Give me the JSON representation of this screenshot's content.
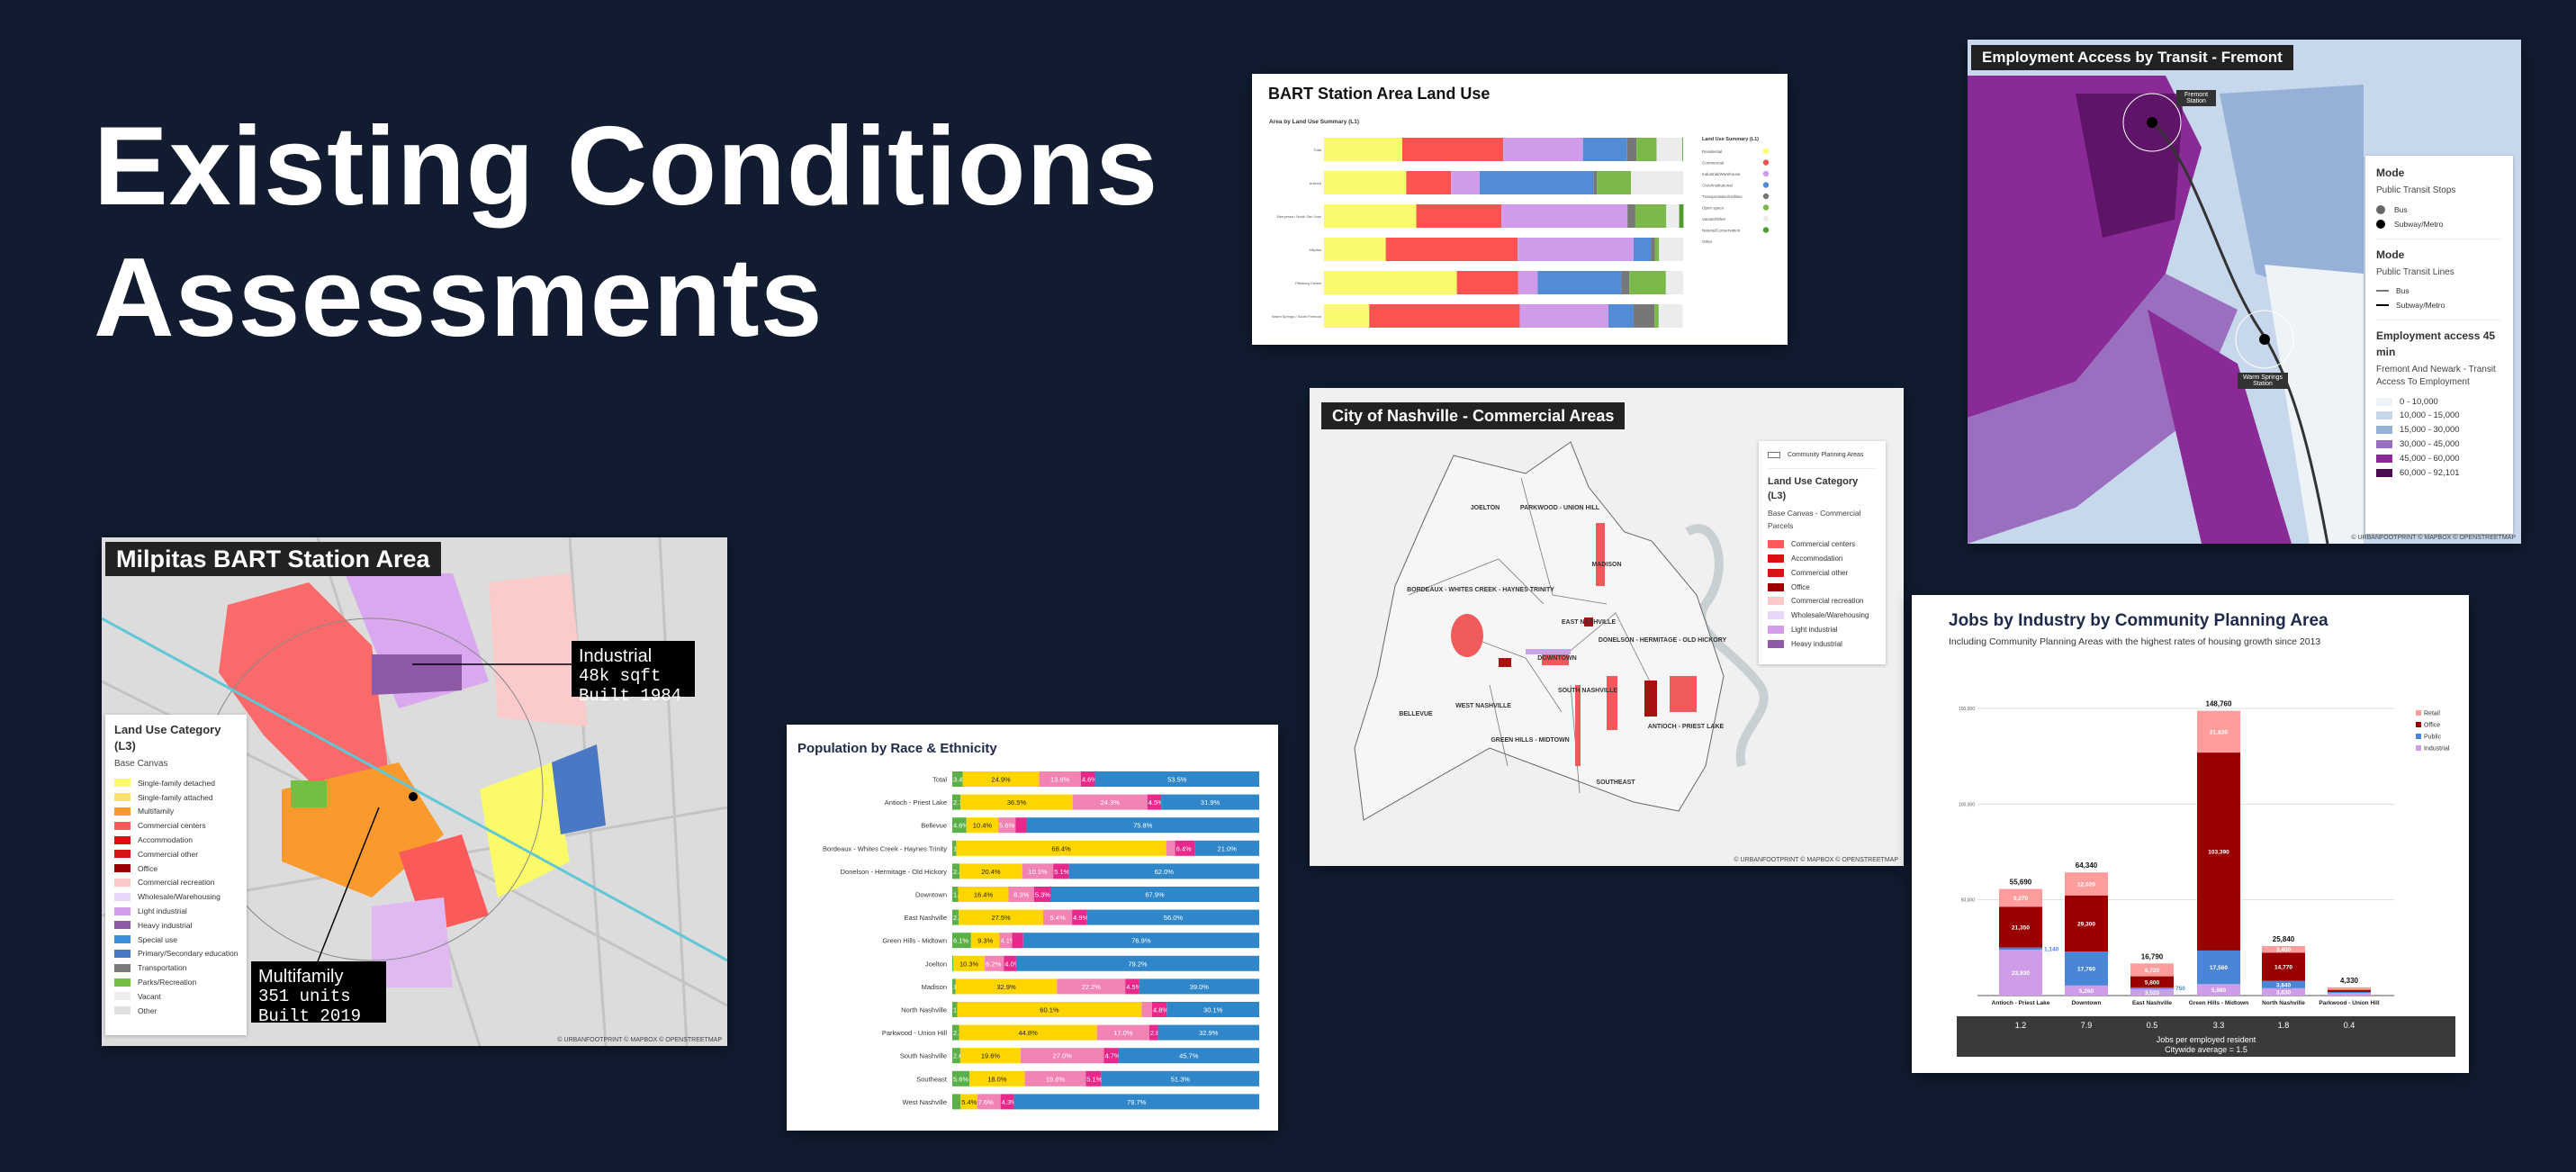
{
  "hero": {
    "line1": "Existing Conditions",
    "line2": "Assessments"
  },
  "colors": {
    "background": "#111c31"
  },
  "attribution": "© URBANFOOTPRINT © MAPBOX © OPENSTREETMAP",
  "milpitas": {
    "title": "Milpitas BART Station Area",
    "legend": {
      "title": "Land Use Category (L3)",
      "subtitle": "Base Canvas",
      "items": [
        {
          "label": "Single-family detached",
          "color": "#fbfb6a"
        },
        {
          "label": "Single-family attached",
          "color": "#fde16a"
        },
        {
          "label": "Multifamily",
          "color": "#fb9a2c"
        },
        {
          "label": "Commercial centers",
          "color": "#fb5a5a"
        },
        {
          "label": "Accommodation",
          "color": "#dd1010"
        },
        {
          "label": "Commercial other",
          "color": "#d41515"
        },
        {
          "label": "Office",
          "color": "#990000"
        },
        {
          "label": "Commercial recreation",
          "color": "#fbc8c8"
        },
        {
          "label": "Wholesale/Warehousing",
          "color": "#e9d5f7"
        },
        {
          "label": "Light industrial",
          "color": "#d49be8"
        },
        {
          "label": "Heavy industrial",
          "color": "#8e5aa8"
        },
        {
          "label": "Special use",
          "color": "#3b8fde"
        },
        {
          "label": "Primary/Secondary education",
          "color": "#4b78c4"
        },
        {
          "label": "Transportation",
          "color": "#7a7a7a"
        },
        {
          "label": "Parks/Recreation",
          "color": "#72bf44"
        },
        {
          "label": "Vacant",
          "color": "#eeeeee"
        },
        {
          "label": "Other",
          "color": "#e0e0e0"
        }
      ]
    },
    "callouts": [
      {
        "heading": "Industrial",
        "line1": "48k sqft",
        "line2": "Built 1984"
      },
      {
        "heading": "Multifamily",
        "line1": "351 units",
        "line2": "Built 2019"
      }
    ]
  },
  "population": {
    "chart_data": {
      "type": "bar",
      "orientation": "horizontal-stacked-100",
      "title": "Population by Race & Ethnicity",
      "colors": [
        "#5aaf48",
        "#ffd500",
        "#f283b5",
        "#e8288a",
        "#2f86c9"
      ],
      "categories": [
        "Total",
        "Antioch - Priest Lake",
        "Bellevue",
        "Bordeaux - Whites Creek - Haynes Trinity",
        "Donelson - Hermitage - Old Hickory",
        "Downtown",
        "East Nashville",
        "Green Hills - Midtown",
        "Joelton",
        "Madison",
        "North Nashville",
        "Parkwood - Union Hill",
        "South Nashville",
        "Southeast",
        "West Nashville"
      ],
      "values": [
        [
          3.4,
          24.9,
          13.6,
          4.6,
          53.5
        ],
        [
          2.7,
          36.5,
          24.3,
          4.5,
          31.9
        ],
        [
          4.6,
          10.4,
          5.6,
          3.6,
          75.8
        ],
        [
          1.3,
          68.4,
          2.9,
          6.4,
          21.0
        ],
        [
          2.4,
          20.4,
          10.1,
          5.1,
          62.0
        ],
        [
          1.9,
          16.4,
          8.3,
          5.3,
          67.9
        ],
        [
          2.1,
          27.5,
          9.4,
          4.9,
          56.0
        ],
        [
          6.1,
          9.3,
          4.1,
          3.6,
          76.9
        ],
        [
          0.3,
          10.3,
          6.2,
          4.0,
          79.2
        ],
        [
          1.1,
          32.9,
          22.2,
          4.5,
          39.0
        ],
        [
          1.6,
          60.1,
          3.4,
          4.8,
          30.1
        ],
        [
          2.2,
          44.8,
          17.0,
          2.8,
          32.9
        ],
        [
          2.6,
          19.6,
          27.0,
          4.7,
          45.7
        ],
        [
          5.6,
          18.0,
          19.8,
          5.1,
          51.3
        ],
        [
          2.7,
          5.4,
          7.6,
          4.3,
          79.7
        ]
      ],
      "labels": [
        [
          "3.4%",
          "24.9%",
          "13.6%",
          "4.6%",
          "53.5%"
        ],
        [
          "2.7%",
          "36.5%",
          "24.3%",
          "4.5%",
          "31.9%"
        ],
        [
          "4.6%",
          "10.4%",
          "5.6%",
          "",
          "75.8%"
        ],
        [
          "1.3%",
          "68.4%",
          "",
          "6.4%",
          "21.0%"
        ],
        [
          "2.4%",
          "20.4%",
          "10.1%",
          "5.1%",
          "62.0%"
        ],
        [
          "1.9%",
          "16.4%",
          "8.3%",
          "5.3%",
          "67.9%"
        ],
        [
          "2.1%",
          "27.5%",
          "9.4%",
          "4.9%",
          "56.0%"
        ],
        [
          "6.1%",
          "9.3%",
          "4.1%",
          "",
          "76.9%"
        ],
        [
          "",
          "10.3%",
          "6.2%",
          "4.0%",
          "79.2%"
        ],
        [
          "1.1%",
          "32.9%",
          "22.2%",
          "4.5%",
          "39.0%"
        ],
        [
          "1.6%",
          "60.1%",
          "",
          "4.8%",
          "30.1%"
        ],
        [
          "2.2%",
          "44.8%",
          "17.0%",
          "2.8%",
          "32.9%"
        ],
        [
          "2.6%",
          "19.6%",
          "27.0%",
          "4.7%",
          "45.7%"
        ],
        [
          "5.6%",
          "18.0%",
          "19.8%",
          "5.1%",
          "51.3%"
        ],
        [
          "",
          "5.4%",
          "7.6%",
          "4.3%",
          "79.7%"
        ]
      ]
    }
  },
  "bart": {
    "chart_data": {
      "type": "bar",
      "orientation": "horizontal-stacked-100",
      "title": "BART Station Area Land Use",
      "subtitle": "Area by Land Use Summary (L1)",
      "legend_title": "Land Use Summary (L1)",
      "legend_position": "right",
      "categories": [
        "Total",
        "Antioch",
        "Berryessa / North San Jose",
        "Milpitas",
        "Pittsburg Center",
        "Warm Springs / South Fremont"
      ],
      "series": [
        {
          "name": "Residential",
          "color": "#fafa6e",
          "values": [
            21.8,
            22.9,
            25.7,
            17.2,
            37.0,
            12.6
          ]
        },
        {
          "name": "Commercial",
          "color": "#fb5252",
          "values": [
            28.1,
            12.5,
            23.7,
            36.7,
            17.1,
            41.9
          ]
        },
        {
          "name": "Industrial/Warehouse",
          "color": "#d09cea",
          "values": [
            22.2,
            7.9,
            35.1,
            32.3,
            5.4,
            24.7
          ]
        },
        {
          "name": "Civic/Institutional",
          "color": "#538cd6",
          "values": [
            12.3,
            31.7,
            0,
            4.8,
            23.3,
            7.0
          ]
        },
        {
          "name": "Transportation/Utilities",
          "color": "#777777",
          "values": [
            2.6,
            1.0,
            2.2,
            1.1,
            2.2,
            5.8
          ]
        },
        {
          "name": "Open space",
          "color": "#7bb84a",
          "values": [
            5.6,
            9.5,
            8.6,
            1.2,
            10.2,
            1.2
          ]
        },
        {
          "name": "Vacant/Other",
          "color": "#ececec",
          "values": [
            7.2,
            14.5,
            3.6,
            6.7,
            4.8,
            6.7
          ]
        },
        {
          "name": "Natural/Conservation",
          "color": "#4e9a2f",
          "values": [
            0.2,
            0,
            1.2,
            0,
            0,
            0
          ]
        },
        {
          "name": "Other",
          "color": "#ffffff",
          "values": [
            0,
            0,
            0,
            0,
            0,
            0
          ]
        }
      ]
    }
  },
  "nashville": {
    "title": "City of Nashville - Commercial Areas",
    "legend": {
      "boundary_label": "Community Planning Areas",
      "title": "Land Use Category (L3)",
      "subtitle": "Base Canvas - Commercial Parcels",
      "items": [
        {
          "label": "Commercial centers",
          "color": "#fb5a5a"
        },
        {
          "label": "Accommodation",
          "color": "#dd1010"
        },
        {
          "label": "Commercial other",
          "color": "#d41515"
        },
        {
          "label": "Office",
          "color": "#990000"
        },
        {
          "label": "Commercial recreation",
          "color": "#fbc8c8"
        },
        {
          "label": "Wholesale/Warehousing",
          "color": "#e9d5f7"
        },
        {
          "label": "Light industrial",
          "color": "#d49be8"
        },
        {
          "label": "Heavy industrial",
          "color": "#8e5aa8"
        }
      ]
    },
    "area_labels": [
      "JOELTON",
      "PARKWOOD - UNION HILL",
      "MADISON",
      "BORDEAUX - WHITES CREEK - HAYNES TRINITY",
      "EAST NASHVILLE",
      "DONELSON - HERMITAGE - OLD HICKORY",
      "DOWNTOWN",
      "SOUTH NASHVILLE",
      "WEST NASHVILLE",
      "BELLEVUE",
      "GREEN HILLS - MIDTOWN",
      "ANTIOCH - PRIEST LAKE",
      "SOUTHEAST"
    ]
  },
  "fremont": {
    "title": "Employment Access by Transit - Fremont",
    "station_labels": [
      "Fremont Station",
      "Warm Springs Station"
    ],
    "legend": {
      "stops": {
        "title": "Mode",
        "subtitle": "Public Transit Stops",
        "items": [
          {
            "label": "Bus",
            "color": "#666666"
          },
          {
            "label": "Subway/Metro",
            "color": "#000000"
          }
        ]
      },
      "lines": {
        "title": "Mode",
        "subtitle": "Public Transit Lines",
        "items": [
          {
            "label": "Bus",
            "color": "#777777"
          },
          {
            "label": "Subway/Metro",
            "color": "#000000"
          }
        ]
      },
      "access": {
        "title": "Employment access 45 min",
        "subtitle": "Fremont And Newark - Transit Access To Employment",
        "items": [
          {
            "label": "0 - 10,000",
            "color": "#eef3f8"
          },
          {
            "label": "10,000 - 15,000",
            "color": "#c8d8ec"
          },
          {
            "label": "15,000 - 30,000",
            "color": "#97b0d8"
          },
          {
            "label": "30,000 - 45,000",
            "color": "#9a6fc0"
          },
          {
            "label": "45,000 - 60,000",
            "color": "#8a2a96"
          },
          {
            "label": "60,000 - 92,101",
            "color": "#4b0b52"
          }
        ]
      }
    }
  },
  "jobs": {
    "chart_data": {
      "type": "bar",
      "orientation": "vertical-stacked",
      "title": "Jobs by Industry by Community Planning Area",
      "subtitle": "Including Community Planning Areas with the highest rates of housing growth since 2013",
      "ylim": [
        0,
        150000
      ],
      "yticks": [
        "50,000",
        "100,000",
        "150,000"
      ],
      "ytick_values": [
        50000,
        100000,
        150000
      ],
      "grid": true,
      "legend_position": "right",
      "categories": [
        "Antioch - Priest Lake",
        "Downtown",
        "East Nashville",
        "Green Hills - Midtown",
        "North Nashville",
        "Parkwood - Union Hill"
      ],
      "series": [
        {
          "name": "Industrial",
          "color": "#cf9de8",
          "values": [
            23930,
            5260,
            3520,
            5980,
            3830,
            1300
          ],
          "labels": [
            "23,930",
            "5,260",
            "3,520",
            "5,980",
            "3,830",
            ""
          ]
        },
        {
          "name": "Public",
          "color": "#4a86d8",
          "values": [
            1140,
            17760,
            750,
            17560,
            3840,
            600
          ],
          "labels": [
            "1,140",
            "17,760",
            "750",
            "17,560",
            "3,840",
            ""
          ]
        },
        {
          "name": "Office",
          "color": "#990000",
          "values": [
            21350,
            29300,
            5800,
            103390,
            14770,
            1100
          ],
          "labels": [
            "21,350",
            "29,300",
            "5,800",
            "103,390",
            "14,770",
            ""
          ]
        },
        {
          "name": "Retail",
          "color": "#ff9c9c",
          "values": [
            9270,
            12020,
            6720,
            21830,
            3400,
            1330
          ],
          "labels": [
            "9,270",
            "12,020",
            "6,720",
            "21,830",
            "3,400",
            ""
          ]
        }
      ],
      "totals": [
        "55,690",
        "64,340",
        "16,790",
        "148,760",
        "25,840",
        "4,330"
      ],
      "legend_order": [
        "Retail",
        "Office",
        "Public",
        "Industrial"
      ],
      "jobs_per_resident": [
        "1.2",
        "7.9",
        "0.5",
        "3.3",
        "1.8",
        "0.4"
      ],
      "footer_line1": "Jobs per employed resident",
      "footer_line2": "Citywide average = 1.5"
    }
  }
}
